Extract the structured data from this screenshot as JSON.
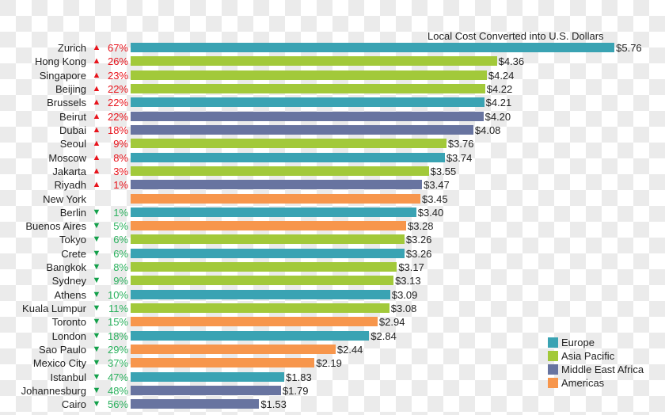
{
  "chart_data": {
    "type": "bar",
    "orientation": "horizontal",
    "title": "Local Cost Converted into U.S. Dollars",
    "xlabel": "",
    "ylabel": "",
    "grid": false,
    "legend_position": "bottom-right",
    "value_prefix": "$",
    "categories": [
      "Zurich",
      "Hong Kong",
      "Singapore",
      "Beijing",
      "Brussels",
      "Beirut",
      "Dubai",
      "Seoul",
      "Moscow",
      "Jakarta",
      "Riyadh",
      "New York",
      "Berlin",
      "Buenos Aires",
      "Tokyo",
      "Crete",
      "Bangkok",
      "Sydney",
      "Athens",
      "Kuala Lumpur",
      "Toronto",
      "London",
      "Sao Paulo",
      "Mexico City",
      "Istanbul",
      "Johannesburg",
      "Cairo"
    ],
    "values": [
      5.76,
      4.36,
      4.24,
      4.22,
      4.21,
      4.2,
      4.08,
      3.76,
      3.74,
      3.55,
      3.47,
      3.45,
      3.4,
      3.28,
      3.26,
      3.26,
      3.17,
      3.13,
      3.09,
      3.08,
      2.94,
      2.84,
      2.44,
      2.19,
      1.83,
      1.79,
      1.53
    ],
    "value_labels": [
      "$5.76",
      "$4.36",
      "$4.24",
      "$4.22",
      "$4.21",
      "$4.20",
      "$4.08",
      "$3.76",
      "$3.74",
      "$3.55",
      "$3.47",
      "$3.45",
      "$3.40",
      "$3.28",
      "$3.26",
      "$3.26",
      "$3.17",
      "$3.13",
      "$3.09",
      "$3.08",
      "$2.94",
      "$2.84",
      "$2.44",
      "$2.19",
      "$1.83",
      "$1.79",
      "$1.53"
    ],
    "regions": [
      "Europe",
      "Asia Pacific",
      "Asia Pacific",
      "Asia Pacific",
      "Europe",
      "Middle East Africa",
      "Middle East Africa",
      "Asia Pacific",
      "Europe",
      "Asia Pacific",
      "Middle East Africa",
      "Americas",
      "Europe",
      "Americas",
      "Asia Pacific",
      "Europe",
      "Asia Pacific",
      "Asia Pacific",
      "Europe",
      "Asia Pacific",
      "Americas",
      "Europe",
      "Americas",
      "Americas",
      "Europe",
      "Middle East Africa",
      "Middle East Africa"
    ],
    "change_direction": [
      "up",
      "up",
      "up",
      "up",
      "up",
      "up",
      "up",
      "up",
      "up",
      "up",
      "up",
      "none",
      "down",
      "down",
      "down",
      "down",
      "down",
      "down",
      "down",
      "down",
      "down",
      "down",
      "down",
      "down",
      "down",
      "down",
      "down"
    ],
    "change_pct": [
      "67%",
      "26%",
      "23%",
      "22%",
      "22%",
      "22%",
      "18%",
      "9%",
      "8%",
      "3%",
      "1%",
      "",
      "1%",
      "5%",
      "6%",
      "6%",
      "8%",
      "9%",
      "10%",
      "11%",
      "15%",
      "18%",
      "29%",
      "37%",
      "47%",
      "48%",
      "56%"
    ],
    "legend": [
      {
        "label": "Europe",
        "color": "#3aa3b3"
      },
      {
        "label": "Asia Pacific",
        "color": "#a2c93a"
      },
      {
        "label": "Middle East Africa",
        "color": "#6874a0"
      },
      {
        "label": "Americas",
        "color": "#f7964c"
      }
    ],
    "xlim": [
      0,
      6
    ]
  },
  "colors": {
    "Europe": "#3aa3b3",
    "Asia Pacific": "#a2c93a",
    "Middle East Africa": "#6874a0",
    "Americas": "#f7964c",
    "up": "#e8141c",
    "down": "#13a04a"
  },
  "icons": {
    "up": "▲",
    "down": "▼"
  }
}
